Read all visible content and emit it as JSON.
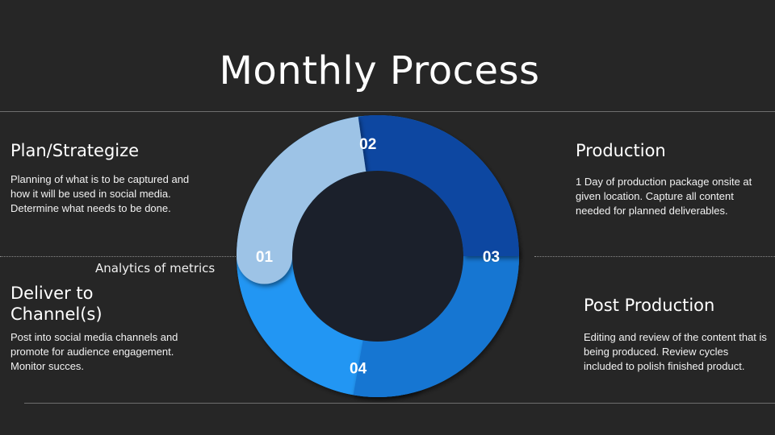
{
  "title": "Monthly Process",
  "analytics_label": "Analytics of metrics",
  "steps": [
    {
      "number": "01",
      "heading": "Plan/Strategize",
      "description": "Planning of what is to be captured and how it will be used in social media. Determine what needs to be done.",
      "color": "#9dc3e6"
    },
    {
      "number": "02",
      "heading": "Production",
      "description": "1 Day of production package onsite at given location. Capture all content needed for planned deliverables.",
      "color": "#0d47a1"
    },
    {
      "number": "03",
      "heading": "Post Production",
      "description": "Editing and review of the content that is being produced. Review cycles included to polish finished product.",
      "color": "#1976d2"
    },
    {
      "number": "04",
      "heading": "Deliver to\nChannel(s)",
      "description": "Post into social media channels and promote for audience engagement. Monitor succes.",
      "color": "#2196f3"
    }
  ],
  "colors": {
    "background": "#262626",
    "center": "#1b202b",
    "text": "#ffffff"
  }
}
